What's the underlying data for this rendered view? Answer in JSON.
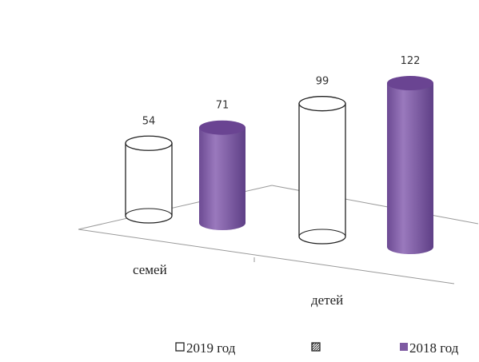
{
  "chart_data": {
    "type": "bar",
    "style": "3d-cylinder",
    "categories": [
      "семей",
      "детей"
    ],
    "series": [
      {
        "name": "2019 год",
        "values": [
          54,
          99
        ],
        "color": "#ffffff"
      },
      {
        "name": "2018 год",
        "values": [
          71,
          122
        ],
        "color": "#7e5aa2"
      }
    ],
    "ylim": [
      0,
      130
    ],
    "grid": false,
    "legend_position": "bottom-right",
    "legend": [
      {
        "label": "2019 год",
        "swatch": "outline-square"
      },
      {
        "label": "",
        "swatch": "hatched-square"
      },
      {
        "label": "2018 год",
        "swatch": "filled-purple-square"
      }
    ],
    "colors": {
      "purple": "#7e5aa2",
      "purple_top": "#6a4492",
      "outline": "#222222"
    }
  }
}
